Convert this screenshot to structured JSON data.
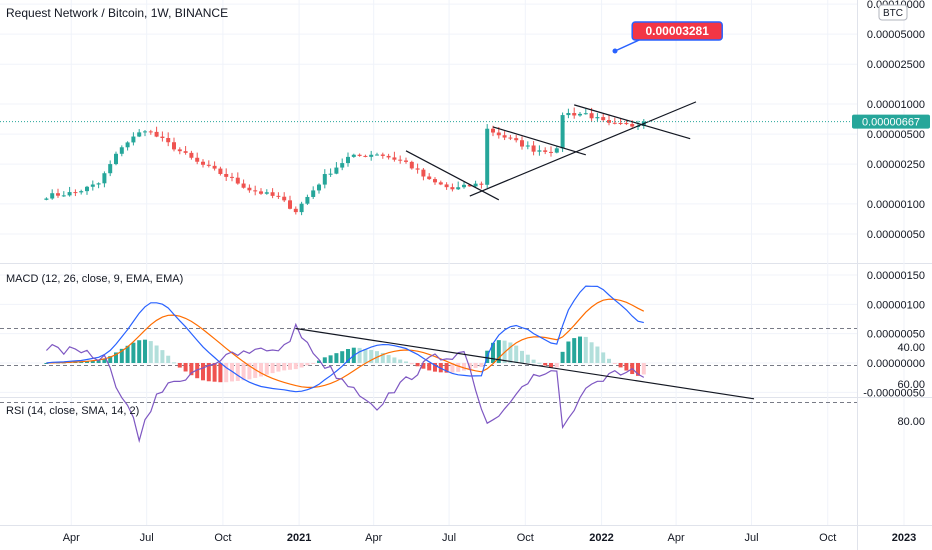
{
  "header": {
    "title": "Request Network / Bitcoin, 1W, BINANCE",
    "currency_badge": "BTC"
  },
  "price_pane": {
    "y_ticks": [
      "0.00010000",
      "0.00005000",
      "0.00002500",
      "0.00001000",
      "0.00000500",
      "0.00000250",
      "0.00000100",
      "0.00000050"
    ],
    "last_price_label": "0.00000667",
    "target_label": "0.00003281"
  },
  "macd_pane": {
    "title": "MACD (12, 26, close, 9, EMA, EMA)",
    "y_ticks": [
      "0.00000150",
      "0.00000100",
      "0.00000050",
      "0.00000000",
      "-0.00000050"
    ]
  },
  "rsi_pane": {
    "title": "RSI (14, close, SMA, 14, 2)",
    "y_ticks": [
      "80.00",
      "60.00",
      "40.00"
    ]
  },
  "time_axis": {
    "labels": [
      {
        "text": "Apr",
        "year": false
      },
      {
        "text": "Jul",
        "year": false
      },
      {
        "text": "Oct",
        "year": false
      },
      {
        "text": "2021",
        "year": true
      },
      {
        "text": "Apr",
        "year": false
      },
      {
        "text": "Jul",
        "year": false
      },
      {
        "text": "Oct",
        "year": false
      },
      {
        "text": "2022",
        "year": true
      },
      {
        "text": "Apr",
        "year": false
      },
      {
        "text": "Jul",
        "year": false
      },
      {
        "text": "Oct",
        "year": false
      },
      {
        "text": "2023",
        "year": true
      }
    ]
  },
  "colors": {
    "up": "#26a69a",
    "down": "#ef5350",
    "macd_line": "#2962ff",
    "signal_line": "#ff6d00",
    "rsi_line": "#7e57c2",
    "rsi_band": "#ede7f6",
    "last_price": "#26a69a",
    "target_badge": "#f23645"
  },
  "chart_data": [
    {
      "type": "candlestick",
      "title": "Request Network / Bitcoin, 1W, BINANCE",
      "scale": "log",
      "y_range": [
        3e-07,
        0.0001
      ],
      "last_close": 6.67e-06,
      "annotation": 3.281e-05,
      "anchors": [
        [
          "2020-03-02",
          1.2e-06
        ],
        [
          "2020-04-06",
          1.3e-06
        ],
        [
          "2020-05-04",
          1.6e-06
        ],
        [
          "2020-06-01",
          3.8e-06
        ],
        [
          "2020-06-29",
          5.6e-06
        ],
        [
          "2020-07-27",
          4e-06
        ],
        [
          "2020-08-31",
          2.6e-06
        ],
        [
          "2020-10-05",
          1.9e-06
        ],
        [
          "2020-11-02",
          1.4e-06
        ],
        [
          "2020-12-07",
          1.15e-06
        ],
        [
          "2020-12-28",
          8.5e-07
        ],
        [
          "2021-02-01",
          1.9e-06
        ],
        [
          "2021-03-01",
          2.9e-06
        ],
        [
          "2021-04-05",
          3.2e-06
        ],
        [
          "2021-05-10",
          2.6e-06
        ],
        [
          "2021-06-07",
          1.7e-06
        ],
        [
          "2021-07-05",
          1.4e-06
        ],
        [
          "2021-08-09",
          1.6e-06
        ],
        [
          "2021-08-16",
          5.6e-06
        ],
        [
          "2021-09-13",
          4.4e-06
        ],
        [
          "2021-10-11",
          3.5e-06
        ],
        [
          "2021-11-08",
          3.4e-06
        ],
        [
          "2021-11-15",
          8e-06
        ],
        [
          "2021-12-13",
          8e-06
        ],
        [
          "2022-01-10",
          6.2e-06
        ],
        [
          "2022-02-07",
          6.1e-06
        ],
        [
          "2022-02-21",
          6.67e-06
        ]
      ]
    },
    {
      "type": "line",
      "title": "MACD (12, 26, close, 9, EMA, EMA)",
      "y_range": [
        -6e-07,
        1.6e-06
      ]
    },
    {
      "type": "line",
      "title": "RSI (14, close, SMA, 14, 2)",
      "y_range": [
        28,
        90
      ],
      "bands": [
        30,
        50,
        70
      ],
      "anchors": [
        [
          "2020-03-02",
          40
        ],
        [
          "2020-05-11",
          46
        ],
        [
          "2020-06-15",
          80
        ],
        [
          "2020-06-22",
          90
        ],
        [
          "2020-07-13",
          65
        ],
        [
          "2020-09-07",
          50
        ],
        [
          "2020-10-19",
          44
        ],
        [
          "2020-12-14",
          40
        ],
        [
          "2020-12-28",
          30
        ],
        [
          "2021-02-01",
          50
        ],
        [
          "2021-04-05",
          72
        ],
        [
          "2021-05-10",
          58
        ],
        [
          "2021-06-14",
          45
        ],
        [
          "2021-07-19",
          44
        ],
        [
          "2021-08-16",
          83
        ],
        [
          "2021-09-13",
          72
        ],
        [
          "2021-10-11",
          55
        ],
        [
          "2021-11-08",
          52
        ],
        [
          "2021-11-15",
          84
        ],
        [
          "2021-12-13",
          60
        ],
        [
          "2022-01-10",
          56
        ],
        [
          "2022-02-07",
          52
        ],
        [
          "2022-02-21",
          57
        ]
      ]
    }
  ]
}
